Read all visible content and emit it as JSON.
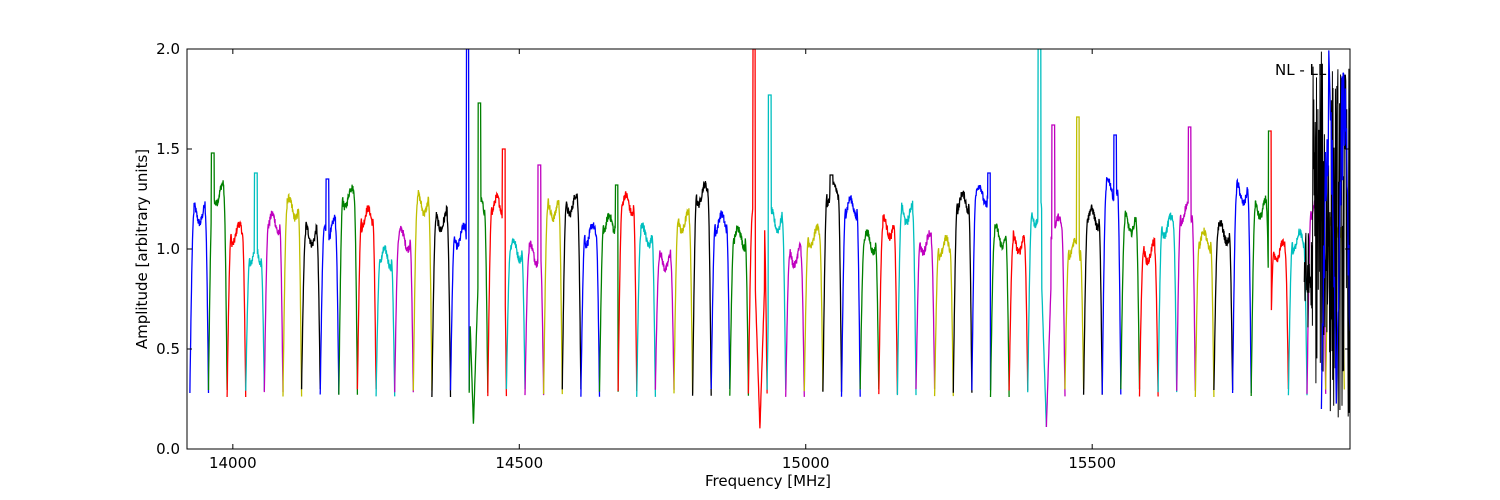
{
  "figure": {
    "annotation": "NL - LL"
  },
  "chart_data": {
    "type": "line",
    "xlabel": "Frequency [MHz]",
    "ylabel": "Amplitude [arbitrary units]",
    "xlim": [
      13920,
      15950
    ],
    "ylim": [
      0,
      2.0
    ],
    "xticks": [
      14000,
      14500,
      15000,
      15500
    ],
    "yticks": [
      0.0,
      0.5,
      1.0,
      1.5,
      2.0
    ],
    "ytick_labels": [
      "0.0",
      "0.5",
      "1.0",
      "1.5",
      "2.0"
    ],
    "grid": false,
    "legend": "none",
    "band": {
      "start": 13925,
      "spacing": 32.5,
      "count": 62,
      "dip_min": 0.28,
      "color_cycle": [
        "#0000ff",
        "#008000",
        "#ff0000",
        "#00bfbf",
        "#bf00bf",
        "#bfbf00",
        "#000000"
      ]
    },
    "spikes": [
      {
        "x": 13965,
        "y": 1.48
      },
      {
        "x": 14040,
        "y": 1.38
      },
      {
        "x": 14165,
        "y": 1.35
      },
      {
        "x": 14410,
        "y": 2.0
      },
      {
        "x": 14430,
        "y": 1.73
      },
      {
        "x": 14473,
        "y": 1.5
      },
      {
        "x": 14535,
        "y": 1.42
      },
      {
        "x": 14670,
        "y": 1.32
      },
      {
        "x": 14910,
        "y": 2.0
      },
      {
        "x": 14937,
        "y": 1.77
      },
      {
        "x": 15045,
        "y": 1.37
      },
      {
        "x": 15320,
        "y": 1.38
      },
      {
        "x": 15408,
        "y": 2.0
      },
      {
        "x": 15432,
        "y": 1.62
      },
      {
        "x": 15475,
        "y": 1.66
      },
      {
        "x": 15540,
        "y": 1.57
      },
      {
        "x": 15670,
        "y": 1.61
      },
      {
        "x": 15810,
        "y": 1.59
      }
    ],
    "deep_dips": [
      {
        "x": 14420,
        "y": 0.12
      },
      {
        "x": 14920,
        "y": 0.1
      },
      {
        "x": 15420,
        "y": 0.11
      }
    ],
    "noisy_tail": {
      "x_start": 15870,
      "x_end": 15950,
      "y_min": 0.0,
      "y_max": 2.0
    }
  }
}
